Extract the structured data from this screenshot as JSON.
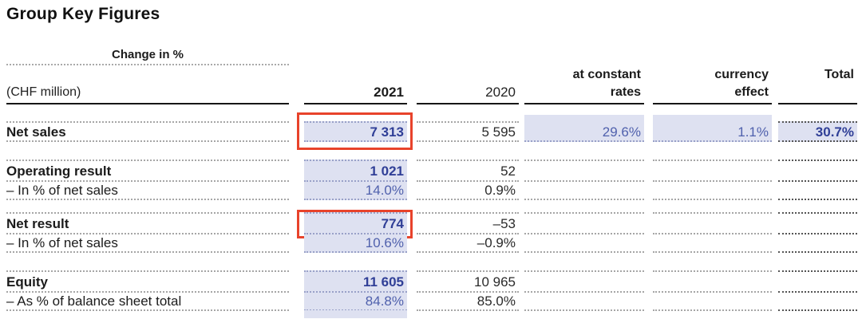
{
  "title": "Group Key Figures",
  "colors": {
    "highlight_bg": "#dee1f1",
    "value_blue_bold": "#303f97",
    "value_blue_regular": "#5061ad",
    "annotation_red": "#e8432b"
  },
  "table": {
    "unit_label": "(CHF million)",
    "col_2021": "2021",
    "col_2020": "2020",
    "change_group_label": "Change in %",
    "col_rates_line1": "at constant",
    "col_rates_line2": "rates",
    "col_effect_line1": "currency",
    "col_effect_line2": "effect",
    "col_total": "Total",
    "rows": [
      {
        "label": "Net sales",
        "v2021": "7 313",
        "v2020": "5 595",
        "rates": "29.6%",
        "effect": "1.1%",
        "total": "30.7%"
      },
      {
        "label": "Operating result",
        "v2021": "1 021",
        "v2020": "52",
        "rates": "",
        "effect": "",
        "total": ""
      },
      {
        "label": "– In % of net sales",
        "v2021": "14.0%",
        "v2020": "0.9%",
        "rates": "",
        "effect": "",
        "total": ""
      },
      {
        "label": "Net result",
        "v2021": "774",
        "v2020": "–53",
        "rates": "",
        "effect": "",
        "total": ""
      },
      {
        "label": "– In % of net sales",
        "v2021": "10.6%",
        "v2020": "–0.9%",
        "rates": "",
        "effect": "",
        "total": ""
      },
      {
        "label": "Equity",
        "v2021": "11 605",
        "v2020": "10 965",
        "rates": "",
        "effect": "",
        "total": ""
      },
      {
        "label": "– As % of balance sheet total",
        "v2021": "84.8%",
        "v2020": "85.0%",
        "rates": "",
        "effect": "",
        "total": ""
      }
    ]
  }
}
